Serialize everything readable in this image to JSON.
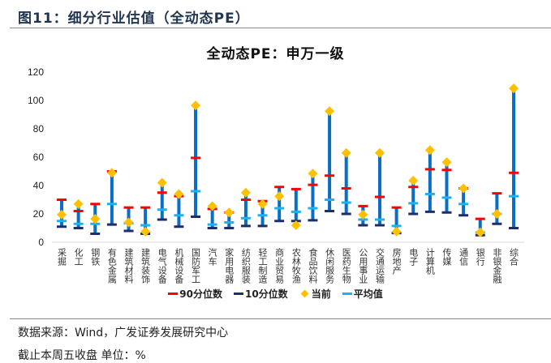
{
  "figure_title": "图11：细分行业估值（全动态PE）",
  "source": "数据来源：Wind，广发证券发展研究中心",
  "note": "截止本周五收盘 单位：%",
  "colors": {
    "p90": "#ff0000",
    "p10": "#1f2d6b",
    "current": "#ffc000",
    "mean": "#1ab2f0",
    "range": "#0a6fc2"
  },
  "chart_data": {
    "type": "scatter",
    "title": "全动态PE：申万一级",
    "xlabel": "",
    "ylabel": "",
    "ylim": [
      0,
      120
    ],
    "yticks": [
      0,
      20,
      40,
      60,
      80,
      100,
      120
    ],
    "legend_position": "bottom",
    "categories": [
      "采掘",
      "化工",
      "钢铁",
      "有色金属",
      "建筑材料",
      "建筑装饰",
      "电气设备",
      "机械设备",
      "国防军工",
      "汽车",
      "家用电器",
      "纺织服装",
      "轻工制造",
      "商业贸易",
      "农林牧渔",
      "食品饮料",
      "休闲服务",
      "医药生物",
      "公用事业",
      "交通运输",
      "房地产",
      "电子",
      "计算机",
      "传媒",
      "通信",
      "银行",
      "非银金融",
      "综合"
    ],
    "series": [
      {
        "name": "90分位数",
        "values": [
          30,
          22,
          27,
          50,
          24.5,
          24.5,
          35,
          32.5,
          59.5,
          23.5,
          21,
          30,
          29,
          39,
          37.5,
          40.5,
          47,
          38,
          25.5,
          32,
          24.5,
          39,
          51.5,
          51,
          38,
          16.5,
          34.5,
          49
        ]
      },
      {
        "name": "10分位数",
        "values": [
          11,
          10,
          6,
          12.5,
          8,
          6,
          16,
          11,
          18,
          10,
          10,
          11.5,
          11.5,
          15,
          15,
          15.5,
          22,
          20,
          12,
          12,
          6.5,
          20,
          21.5,
          21,
          19,
          5,
          13,
          10
        ]
      },
      {
        "name": "当前",
        "values": [
          19.5,
          27,
          16.5,
          49,
          14,
          7.5,
          42,
          34,
          96.5,
          25.5,
          21,
          35,
          27,
          32.5,
          12,
          48.5,
          92.5,
          63,
          19.5,
          63,
          7.5,
          43.5,
          65,
          56.5,
          38,
          7,
          20,
          108.5
        ]
      },
      {
        "name": "平均值",
        "values": [
          15,
          13,
          13,
          27,
          13.5,
          12,
          23,
          19,
          36,
          12.5,
          14,
          17,
          19,
          24,
          21.5,
          24,
          30,
          28,
          16,
          16,
          11.5,
          27.5,
          34,
          31.5,
          27,
          7,
          20,
          32.5
        ]
      }
    ]
  }
}
